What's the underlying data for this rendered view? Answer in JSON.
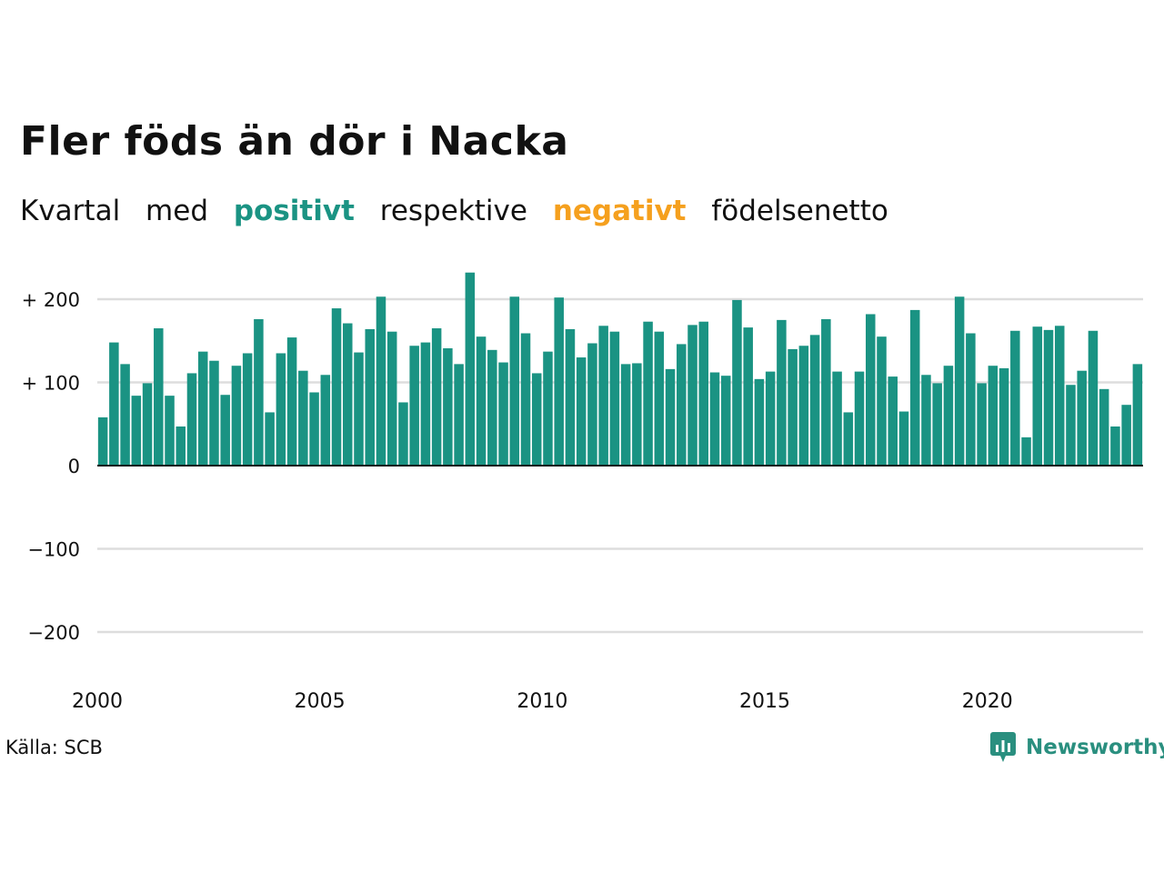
{
  "title": "Fler föds än dör i Nacka",
  "subtitle": {
    "part1": "Kvartal",
    "part2": "med",
    "positive": "positivt",
    "part3": "respektive",
    "negative": "negativt",
    "part4": "födelsenetto"
  },
  "colors": {
    "positive": "#1a9383",
    "negative": "#f5a01e",
    "grid": "#dddddd",
    "axis": "#111111"
  },
  "source": "Källa: SCB",
  "logo": {
    "text": "Newsworthy",
    "icon": "newsworthy-chart-icon"
  },
  "chart_data": {
    "type": "bar",
    "x_start": "2000-Q1",
    "frequency": "quarterly",
    "ylim": [
      -230,
      240
    ],
    "yticks": [
      200,
      100,
      0,
      -100,
      -200
    ],
    "ytick_labels": [
      "+ 200",
      "+ 100",
      "0",
      "−100",
      "−200"
    ],
    "xticks": [
      "2000",
      "2005",
      "2010",
      "2015",
      "2020"
    ],
    "grid": true,
    "values": [
      58,
      148,
      122,
      84,
      99,
      165,
      84,
      47,
      111,
      137,
      126,
      85,
      120,
      135,
      176,
      64,
      135,
      154,
      114,
      88,
      109,
      189,
      171,
      136,
      164,
      203,
      161,
      76,
      144,
      148,
      165,
      141,
      122,
      232,
      155,
      139,
      124,
      203,
      159,
      111,
      137,
      202,
      164,
      130,
      147,
      168,
      161,
      122,
      123,
      173,
      161,
      116,
      146,
      169,
      173,
      112,
      108,
      199,
      166,
      104,
      113,
      175,
      140,
      144,
      157,
      176,
      113,
      64,
      113,
      182,
      155,
      107,
      65,
      187,
      109,
      99,
      120,
      203,
      159,
      99,
      120,
      117,
      162,
      34,
      167,
      163,
      168,
      97,
      114,
      162,
      92,
      47,
      73,
      122
    ]
  }
}
